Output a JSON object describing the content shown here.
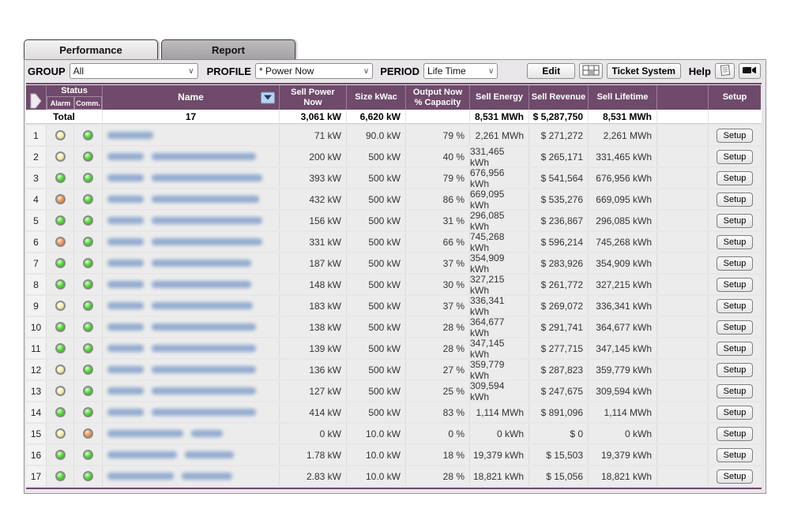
{
  "tabs": [
    {
      "label": "Performance",
      "active": true
    },
    {
      "label": "Report",
      "active": false
    }
  ],
  "filters": {
    "group_label": "GROUP",
    "group_value": "All",
    "profile_label": "PROFILE",
    "profile_value": "* Power Now",
    "period_label": "PERIOD",
    "period_value": "Life Time",
    "edit_button": "Edit",
    "ticket_button": "Ticket System",
    "help_label": "Help"
  },
  "table": {
    "headers": {
      "status": "Status",
      "alarm": "Alarm",
      "comm": "Comm.",
      "name": "Name",
      "sell_power": "Sell Power\nNow",
      "size": "Size kWac",
      "output": "Output Now\n% Capacity",
      "sell_energy": "Sell Energy",
      "sell_revenue": "Sell Revenue",
      "sell_lifetime": "Sell Lifetime",
      "setup": "Setup"
    },
    "setup_button_label": "Setup",
    "total": {
      "label": "Total",
      "count": "17",
      "sell_power": "3,061 kW",
      "size": "6,620 kW",
      "output": "",
      "sell_energy": "8,531 MWh",
      "sell_revenue": "$ 5,287,750",
      "sell_lifetime": "8,531 MWh"
    },
    "rows": [
      {
        "num": "1",
        "alarm": "yellow",
        "comm": "green",
        "name_blobs": [
          58
        ],
        "sell_power": "71 kW",
        "size": "90.0 kW",
        "output": "79 %",
        "sell_energy": "2,261 MWh",
        "sell_revenue": "$ 271,272",
        "sell_lifetime": "2,261 MWh"
      },
      {
        "num": "2",
        "alarm": "yellow",
        "comm": "green",
        "name_blobs": [
          46,
          132
        ],
        "sell_power": "200 kW",
        "size": "500 kW",
        "output": "40 %",
        "sell_energy": "331,465 kWh",
        "sell_revenue": "$ 265,171",
        "sell_lifetime": "331,465 kWh"
      },
      {
        "num": "3",
        "alarm": "green",
        "comm": "green",
        "name_blobs": [
          46,
          140
        ],
        "sell_power": "393 kW",
        "size": "500 kW",
        "output": "79 %",
        "sell_energy": "676,956 kWh",
        "sell_revenue": "$ 541,564",
        "sell_lifetime": "676,956 kWh"
      },
      {
        "num": "4",
        "alarm": "orange",
        "comm": "green",
        "name_blobs": [
          46,
          136
        ],
        "sell_power": "432 kW",
        "size": "500 kW",
        "output": "86 %",
        "sell_energy": "669,095 kWh",
        "sell_revenue": "$ 535,276",
        "sell_lifetime": "669,095 kWh"
      },
      {
        "num": "5",
        "alarm": "green",
        "comm": "green",
        "name_blobs": [
          46,
          140
        ],
        "sell_power": "156 kW",
        "size": "500 kW",
        "output": "31 %",
        "sell_energy": "296,085 kWh",
        "sell_revenue": "$ 236,867",
        "sell_lifetime": "296,085 kWh"
      },
      {
        "num": "6",
        "alarm": "orange",
        "comm": "green",
        "name_blobs": [
          46,
          140
        ],
        "sell_power": "331 kW",
        "size": "500 kW",
        "output": "66 %",
        "sell_energy": "745,268 kWh",
        "sell_revenue": "$ 596,214",
        "sell_lifetime": "745,268 kWh"
      },
      {
        "num": "7",
        "alarm": "green",
        "comm": "green",
        "name_blobs": [
          46,
          126
        ],
        "sell_power": "187 kW",
        "size": "500 kW",
        "output": "37 %",
        "sell_energy": "354,909 kWh",
        "sell_revenue": "$ 283,926",
        "sell_lifetime": "354,909 kWh"
      },
      {
        "num": "8",
        "alarm": "green",
        "comm": "green",
        "name_blobs": [
          46,
          126
        ],
        "sell_power": "148 kW",
        "size": "500 kW",
        "output": "30 %",
        "sell_energy": "327,215 kWh",
        "sell_revenue": "$ 261,772",
        "sell_lifetime": "327,215 kWh"
      },
      {
        "num": "9",
        "alarm": "yellow",
        "comm": "green",
        "name_blobs": [
          46,
          128
        ],
        "sell_power": "183 kW",
        "size": "500 kW",
        "output": "37 %",
        "sell_energy": "336,341 kWh",
        "sell_revenue": "$ 269,072",
        "sell_lifetime": "336,341 kWh"
      },
      {
        "num": "10",
        "alarm": "green",
        "comm": "green",
        "name_blobs": [
          46,
          132
        ],
        "sell_power": "138 kW",
        "size": "500 kW",
        "output": "28 %",
        "sell_energy": "364,677 kWh",
        "sell_revenue": "$ 291,741",
        "sell_lifetime": "364,677 kWh"
      },
      {
        "num": "11",
        "alarm": "green",
        "comm": "green",
        "name_blobs": [
          46,
          132
        ],
        "sell_power": "139 kW",
        "size": "500 kW",
        "output": "28 %",
        "sell_energy": "347,145 kWh",
        "sell_revenue": "$ 277,715",
        "sell_lifetime": "347,145 kWh"
      },
      {
        "num": "12",
        "alarm": "yellow",
        "comm": "green",
        "name_blobs": [
          46,
          132
        ],
        "sell_power": "136 kW",
        "size": "500 kW",
        "output": "27 %",
        "sell_energy": "359,779 kWh",
        "sell_revenue": "$ 287,823",
        "sell_lifetime": "359,779 kWh"
      },
      {
        "num": "13",
        "alarm": "yellow",
        "comm": "green",
        "name_blobs": [
          46,
          132
        ],
        "sell_power": "127 kW",
        "size": "500 kW",
        "output": "25 %",
        "sell_energy": "309,594 kWh",
        "sell_revenue": "$ 247,675",
        "sell_lifetime": "309,594 kWh"
      },
      {
        "num": "14",
        "alarm": "green",
        "comm": "green",
        "name_blobs": [
          46,
          132
        ],
        "sell_power": "414 kW",
        "size": "500 kW",
        "output": "83 %",
        "sell_energy": "1,114 MWh",
        "sell_revenue": "$ 891,096",
        "sell_lifetime": "1,114 MWh"
      },
      {
        "num": "15",
        "alarm": "yellow",
        "comm": "orange",
        "name_blobs": [
          96,
          40
        ],
        "sell_power": "0 kW",
        "size": "10.0 kW",
        "output": "0 %",
        "sell_energy": "0 kWh",
        "sell_revenue": "$ 0",
        "sell_lifetime": "0 kWh"
      },
      {
        "num": "16",
        "alarm": "green",
        "comm": "green",
        "name_blobs": [
          88,
          62
        ],
        "sell_power": "1.78 kW",
        "size": "10.0 kW",
        "output": "18 %",
        "sell_energy": "19,379 kWh",
        "sell_revenue": "$ 15,503",
        "sell_lifetime": "19,379 kWh"
      },
      {
        "num": "17",
        "alarm": "green",
        "comm": "green",
        "name_blobs": [
          84,
          64
        ],
        "sell_power": "2.83 kW",
        "size": "10.0 kW",
        "output": "28 %",
        "sell_energy": "18,821 kWh",
        "sell_revenue": "$ 15,056",
        "sell_lifetime": "18,821 kWh"
      }
    ]
  },
  "colors": {
    "header_purple": "#6f4a6b",
    "led_green": "#56e23b",
    "led_yellow": "#f2edae",
    "led_orange": "#f0995a",
    "name_blur_blue": "#7d9cc8",
    "sort_button_blue": "#b9d3ee"
  }
}
